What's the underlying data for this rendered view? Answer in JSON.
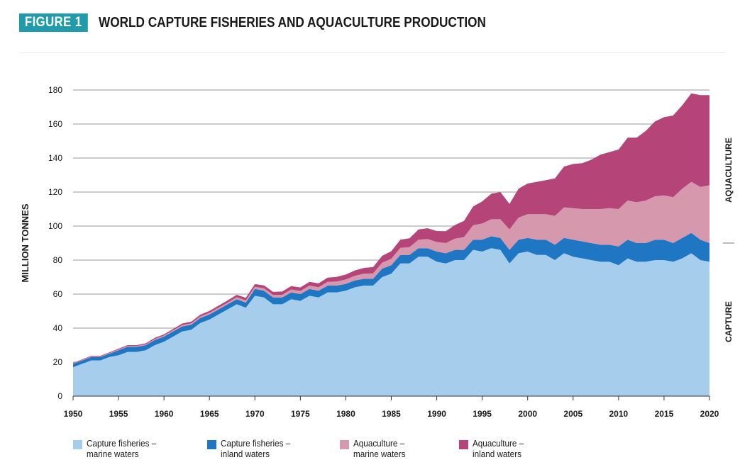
{
  "figure": {
    "tag": "FIGURE 1",
    "title": "WORLD CAPTURE FISHERIES AND AQUACULTURE PRODUCTION",
    "tag_color": "#1f9bab"
  },
  "chart_data": {
    "type": "area",
    "stacked": true,
    "title": "WORLD CAPTURE FISHERIES AND AQUACULTURE PRODUCTION",
    "ylabel": "MILLION TONNES",
    "xlabel": "",
    "xlim": [
      1950,
      2020
    ],
    "ylim": [
      0,
      180
    ],
    "yticks": [
      0,
      20,
      40,
      60,
      80,
      100,
      120,
      140,
      160,
      180
    ],
    "xticks": [
      1950,
      1955,
      1960,
      1965,
      1970,
      1975,
      1980,
      1985,
      1990,
      1995,
      2000,
      2005,
      2010,
      2015,
      2020
    ],
    "grid": "horizontal",
    "legend_position": "bottom",
    "right_labels": [
      "AQUACULTURE",
      "CAPTURE"
    ],
    "x": [
      1950,
      1951,
      1952,
      1953,
      1954,
      1955,
      1956,
      1957,
      1958,
      1959,
      1960,
      1961,
      1962,
      1963,
      1964,
      1965,
      1966,
      1967,
      1968,
      1969,
      1970,
      1971,
      1972,
      1973,
      1974,
      1975,
      1976,
      1977,
      1978,
      1979,
      1980,
      1981,
      1982,
      1983,
      1984,
      1985,
      1986,
      1987,
      1988,
      1989,
      1990,
      1991,
      1992,
      1993,
      1994,
      1995,
      1996,
      1997,
      1998,
      1999,
      2000,
      2001,
      2002,
      2003,
      2004,
      2005,
      2006,
      2007,
      2008,
      2009,
      2010,
      2011,
      2012,
      2013,
      2014,
      2015,
      2016,
      2017,
      2018,
      2019,
      2020
    ],
    "series": [
      {
        "name": "Capture fisheries – marine waters",
        "color": "#a6cdeb",
        "values": [
          17,
          19,
          21,
          21,
          23,
          24,
          26,
          26,
          27,
          30,
          32,
          35,
          38,
          39,
          43,
          45,
          48,
          51,
          54,
          52,
          59,
          58,
          54,
          54,
          57,
          56,
          59,
          58,
          61,
          61,
          62,
          64,
          65,
          65,
          70,
          72,
          78,
          78,
          82,
          82,
          79,
          78,
          80,
          80,
          86,
          85,
          87,
          86,
          78,
          84,
          85,
          83,
          83,
          80,
          84,
          82,
          81,
          80,
          79,
          79,
          77,
          81,
          79,
          79,
          80,
          80,
          79,
          81,
          84,
          80,
          79
        ]
      },
      {
        "name": "Capture fisheries – inland waters",
        "color": "#1f77c4",
        "values": [
          2,
          2,
          2,
          2,
          2,
          3,
          3,
          3,
          3,
          3,
          3,
          3,
          3,
          3,
          3,
          3,
          3,
          3,
          3,
          3,
          4,
          4,
          4,
          4,
          4,
          4,
          4,
          4,
          4,
          4,
          4,
          4,
          4,
          4,
          5,
          5,
          5,
          5,
          5,
          5,
          6,
          6,
          6,
          6,
          6,
          7,
          7,
          7,
          8,
          8,
          8,
          9,
          9,
          9,
          9,
          10,
          10,
          10,
          10,
          10,
          11,
          11,
          11,
          11,
          12,
          12,
          11,
          12,
          12,
          12,
          11
        ]
      },
      {
        "name": "Aquaculture – marine waters",
        "color": "#d698ad",
        "values": [
          0.3,
          0.3,
          0.3,
          0.3,
          0.4,
          0.4,
          0.5,
          0.5,
          0.5,
          0.6,
          0.6,
          0.7,
          0.8,
          0.8,
          0.9,
          1,
          1,
          1,
          1.2,
          1.3,
          1.3,
          1.4,
          1.5,
          1.6,
          1.7,
          1.8,
          2,
          2,
          2.2,
          2.4,
          2.6,
          2.8,
          3,
          3.2,
          3.5,
          3.8,
          4.2,
          4.6,
          5,
          5.4,
          5.6,
          6,
          6.6,
          7.5,
          8.5,
          9.5,
          10,
          11,
          12,
          13,
          14,
          15,
          15,
          17,
          18,
          18.5,
          19,
          20,
          21,
          21.5,
          22,
          23,
          24,
          25,
          25.5,
          26,
          27,
          29,
          30,
          31,
          34
        ]
      },
      {
        "name": "Aquaculture – inland waters",
        "color": "#b54578",
        "values": [
          0.3,
          0.3,
          0.4,
          0.4,
          0.4,
          0.5,
          0.5,
          0.5,
          0.6,
          0.7,
          0.7,
          0.8,
          0.9,
          1,
          1,
          1.1,
          1.2,
          1.3,
          1.4,
          1.5,
          1.6,
          1.7,
          1.8,
          1.9,
          2,
          2.1,
          2.2,
          2.3,
          2.5,
          2.7,
          2.9,
          3.1,
          3.4,
          3.7,
          4,
          4.4,
          4.8,
          5.2,
          6,
          6.3,
          6.5,
          7,
          8,
          9.5,
          11,
          13,
          15,
          16,
          15,
          17,
          18,
          19,
          20,
          22,
          24,
          26,
          27,
          29,
          32,
          33,
          35,
          37,
          38,
          41,
          44,
          46,
          48,
          49,
          52,
          54,
          53
        ]
      }
    ]
  },
  "legend": [
    {
      "label": "Capture fisheries –\nmarine waters",
      "color": "#a6cdeb"
    },
    {
      "label": "Capture fisheries –\ninland waters",
      "color": "#1f77c4"
    },
    {
      "label": "Aquaculture –\nmarine waters",
      "color": "#d698ad"
    },
    {
      "label": "Aquaculture –\ninland waters",
      "color": "#b54578"
    }
  ]
}
